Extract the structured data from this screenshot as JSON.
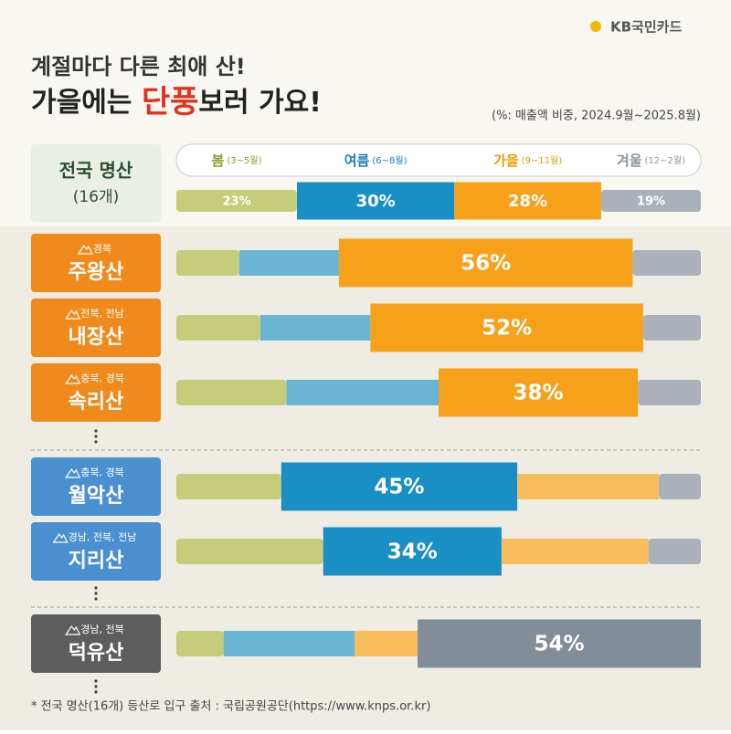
{
  "logo": "KB국민카드",
  "header": {
    "line1": "계절마다 다른 최애 산!",
    "line2_before": "가을에는 ",
    "line2_highlight": "단풍",
    "line2_after": "보러 가요!",
    "note": "(%: 매출액 비중, 2024.9월~2025.8월)"
  },
  "footnote": "* 전국 명산(16개) 등산로 입구 출처 : 국립공원공단(https://www.knps.or.kr)",
  "chart_data": {
    "type": "bar",
    "orientation": "horizontal",
    "stacked": true,
    "categories": [
      "전국 명산",
      "주왕산",
      "내장산",
      "속리산",
      "월악산",
      "지리산",
      "덕유산"
    ],
    "category_subtitles": [
      "(16개)",
      "경북",
      "전북, 전남",
      "충북, 경북",
      "충북, 경북",
      "경남, 전북, 전남",
      "경남, 전북"
    ],
    "highlight": [
      null,
      2,
      2,
      2,
      1,
      1,
      3
    ],
    "xlim": [
      0,
      100
    ],
    "series": [
      {
        "name": "봄",
        "period": "(3~5월)",
        "color": "#c5cd7a",
        "highlight_color": "#c5cd7a",
        "text_color": "#8a9a2a",
        "values": [
          23,
          12,
          16,
          21,
          20,
          28,
          9
        ],
        "value_labels": [
          "23%",
          null,
          null,
          null,
          null,
          null,
          null
        ]
      },
      {
        "name": "여름",
        "period": "(6~8월)",
        "color": "#6ab4d4",
        "highlight_color": "#1a8fc6",
        "text_color": "#1a7fb8",
        "values": [
          30,
          19,
          21,
          29,
          45,
          34,
          25
        ],
        "value_labels": [
          "30%",
          null,
          null,
          null,
          "45%",
          "34%",
          null
        ]
      },
      {
        "name": "가을",
        "period": "(9~11월)",
        "color": "#f9bd5c",
        "highlight_color": "#f7a11a",
        "text_color": "#f39800",
        "values": [
          28,
          56,
          52,
          38,
          27,
          28,
          12
        ],
        "value_labels": [
          "28%",
          "56%",
          "52%",
          "38%",
          null,
          null,
          null
        ]
      },
      {
        "name": "겨울",
        "period": "(12~2월)",
        "color": "#aab1b9",
        "highlight_color": "#818d99",
        "text_color": "#8a949e",
        "values": [
          19,
          13,
          11,
          12,
          8,
          10,
          54
        ],
        "value_labels": [
          "19%",
          null,
          null,
          null,
          null,
          null,
          "54%"
        ]
      }
    ]
  }
}
